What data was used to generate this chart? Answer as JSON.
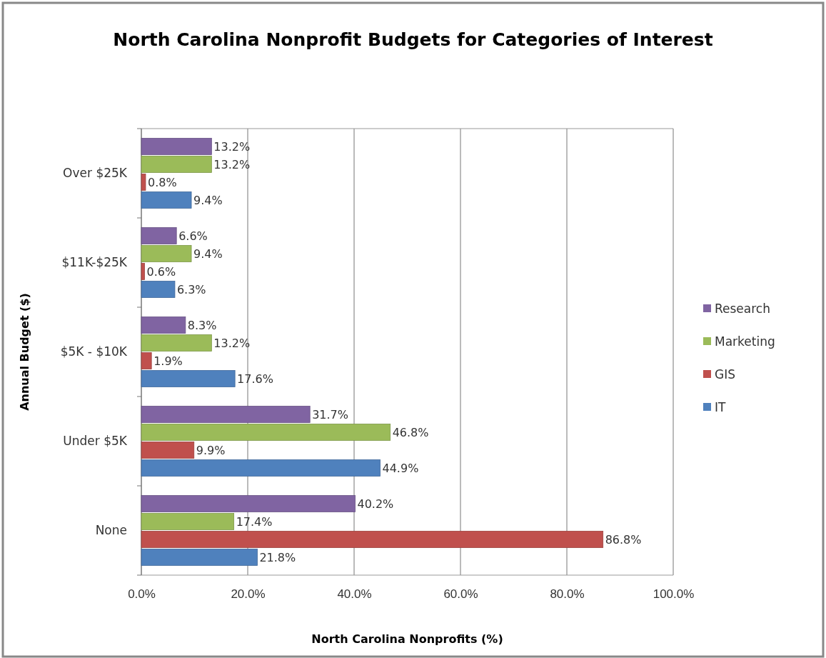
{
  "chart_data": {
    "type": "bar",
    "orientation": "horizontal",
    "title": "North Carolina Nonprofit Budgets for Categories of Interest",
    "xlabel": "North Carolina Nonprofits (%)",
    "ylabel": "Annual Budget ($)",
    "categories": [
      "Over $25K",
      "$11K-$25K",
      "$5K - $10K",
      "Under $5K",
      "None"
    ],
    "series": [
      {
        "name": "Research",
        "color": "#8064a2",
        "values": [
          13.2,
          6.6,
          8.3,
          31.7,
          40.2
        ],
        "value_labels": [
          "13.2%",
          "6.6%",
          "8.3%",
          "31.7%",
          "40.2%"
        ]
      },
      {
        "name": "Marketing",
        "color": "#9bbb59",
        "values": [
          13.2,
          9.4,
          13.2,
          46.8,
          17.4
        ],
        "value_labels": [
          "13.2%",
          "9.4%",
          "13.2%",
          "46.8%",
          "17.4%"
        ]
      },
      {
        "name": "GIS",
        "color": "#c0504d",
        "values": [
          0.8,
          0.6,
          1.9,
          9.9,
          86.8
        ],
        "value_labels": [
          "0.8%",
          "0.6%",
          "1.9%",
          "9.9%",
          "86.8%"
        ]
      },
      {
        "name": "IT",
        "color": "#4f81bd",
        "values": [
          9.4,
          6.3,
          17.6,
          44.9,
          21.8
        ],
        "value_labels": [
          "9.4%",
          "6.3%",
          "17.6%",
          "44.9%",
          "21.8%"
        ]
      }
    ],
    "xlim": [
      0,
      100
    ],
    "xticks": [
      {
        "value": 0,
        "label": "0.0%"
      },
      {
        "value": 20,
        "label": "20.0%"
      },
      {
        "value": 40,
        "label": "40.0%"
      },
      {
        "value": 60,
        "label": "60.0%"
      },
      {
        "value": 80,
        "label": "80.0%"
      },
      {
        "value": 100,
        "label": "100.0%"
      }
    ],
    "grid": "x",
    "legend": "right"
  }
}
